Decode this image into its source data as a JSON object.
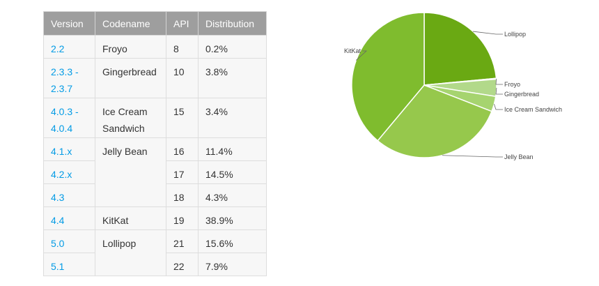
{
  "table": {
    "headers": [
      "Version",
      "Codename",
      "API",
      "Distribution"
    ],
    "groups": [
      {
        "codename": "Froyo",
        "releases": [
          {
            "version": "2.2",
            "api": "8",
            "dist": "0.2%"
          }
        ]
      },
      {
        "codename": "Gingerbread",
        "releases": [
          {
            "version": "2.3.3 -\n2.3.7",
            "api": "10",
            "dist": "3.8%"
          }
        ]
      },
      {
        "codename": "Ice Cream\nSandwich",
        "releases": [
          {
            "version": "4.0.3 -\n4.0.4",
            "api": "15",
            "dist": "3.4%"
          }
        ]
      },
      {
        "codename": "Jelly Bean",
        "releases": [
          {
            "version": "4.1.x",
            "api": "16",
            "dist": "11.4%"
          },
          {
            "version": "4.2.x",
            "api": "17",
            "dist": "14.5%"
          },
          {
            "version": "4.3",
            "api": "18",
            "dist": "4.3%"
          }
        ]
      },
      {
        "codename": "KitKat",
        "releases": [
          {
            "version": "4.4",
            "api": "19",
            "dist": "38.9%"
          }
        ]
      },
      {
        "codename": "Lollipop",
        "releases": [
          {
            "version": "5.0",
            "api": "21",
            "dist": "15.6%"
          },
          {
            "version": "5.1",
            "api": "22",
            "dist": "7.9%"
          }
        ]
      }
    ]
  },
  "chart_data": {
    "type": "pie",
    "categories": [
      "Lollipop",
      "Froyo",
      "Gingerbread",
      "Ice Cream Sandwich",
      "Jelly Bean",
      "KitKat"
    ],
    "values": [
      23.5,
      0.2,
      3.8,
      3.4,
      30.2,
      38.9
    ],
    "colors": [
      "#6aa913",
      "#c7e39c",
      "#b2d98a",
      "#a6d46f",
      "#96c84c",
      "#7fbc2e"
    ],
    "direction": "clockwise from 12 o'clock",
    "legend": "callout labels beside slices"
  }
}
